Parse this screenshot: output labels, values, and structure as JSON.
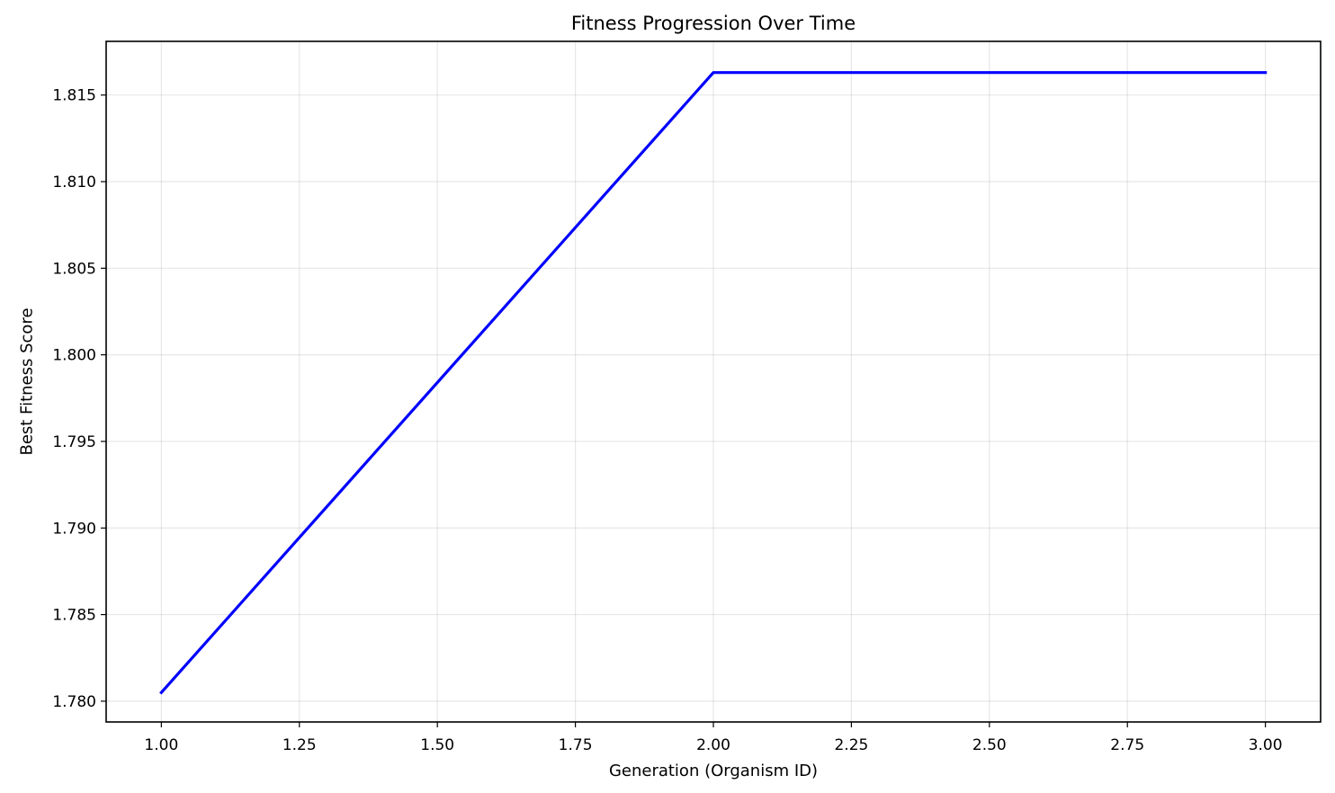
{
  "chart_data": {
    "type": "line",
    "title": "Fitness Progression Over Time",
    "xlabel": "Generation (Organism ID)",
    "ylabel": "Best Fitness Score",
    "xlim": [
      0.9,
      3.1
    ],
    "ylim": [
      1.7788,
      1.8181
    ],
    "x_ticks": [
      1.0,
      1.25,
      1.5,
      1.75,
      2.0,
      2.25,
      2.5,
      2.75,
      3.0
    ],
    "x_tick_labels": [
      "1.00",
      "1.25",
      "1.50",
      "1.75",
      "2.00",
      "2.25",
      "2.50",
      "2.75",
      "3.00"
    ],
    "y_ticks": [
      1.78,
      1.785,
      1.79,
      1.795,
      1.8,
      1.805,
      1.81,
      1.815
    ],
    "y_tick_labels": [
      "1.780",
      "1.785",
      "1.790",
      "1.795",
      "1.800",
      "1.805",
      "1.810",
      "1.815"
    ],
    "grid": true,
    "series": [
      {
        "x": [
          1,
          2,
          3
        ],
        "values": [
          1.7805,
          1.8163,
          1.8163
        ],
        "color": "#0000ff"
      }
    ]
  }
}
